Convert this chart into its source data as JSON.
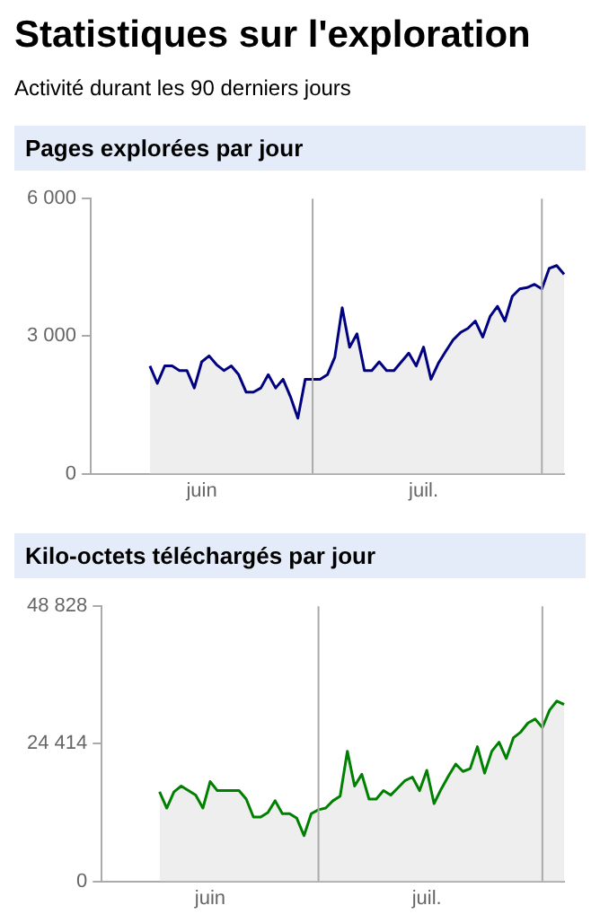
{
  "chart_data": [
    {
      "type": "other",
      "title": "Statistiques sur l'exploration",
      "subtitle": "Activité durant les 90 derniers jours"
    },
    {
      "type": "area",
      "title": "Pages explorées par jour",
      "grid": false,
      "categories": [
        null,
        null,
        null,
        null,
        null,
        null,
        null,
        null,
        null,
        null,
        null,
        null,
        null,
        null,
        null,
        "juin",
        null,
        null,
        null,
        null,
        null,
        null,
        null,
        null,
        null,
        null,
        null,
        null,
        null,
        null,
        null,
        null,
        null,
        null,
        null,
        null,
        null,
        null,
        null,
        null,
        null,
        null,
        null,
        null,
        null,
        "juil.",
        null,
        null,
        null,
        null,
        null,
        null,
        null,
        null,
        null,
        null,
        null,
        null,
        null,
        null,
        null,
        null,
        null,
        null,
        null
      ],
      "ylim": [
        0,
        6000
      ],
      "yticks": [
        0,
        {
          "value": 3000,
          "label": "3 000"
        },
        {
          "value": 6000,
          "label": "6 000"
        }
      ],
      "series": [
        {
          "color": "#000080",
          "values": [
            null,
            null,
            null,
            null,
            null,
            null,
            null,
            null,
            2350,
            1970,
            2350,
            2350,
            2250,
            2250,
            1870,
            2440,
            2570,
            2380,
            2250,
            2350,
            2160,
            1780,
            1780,
            1870,
            2160,
            1870,
            2060,
            1680,
            1210,
            2060,
            2060,
            2060,
            2160,
            2540,
            3620,
            2760,
            3050,
            2250,
            2250,
            2440,
            2250,
            2250,
            2440,
            2630,
            2350,
            2760,
            2060,
            2410,
            2670,
            2920,
            3080,
            3170,
            3330,
            2980,
            3430,
            3650,
            3330,
            3870,
            4030,
            4060,
            4130,
            4030,
            4480,
            4540,
            4350
          ]
        }
      ]
    },
    {
      "type": "area",
      "title": "Kilo-octets téléchargés par jour",
      "grid": false,
      "categories": [
        null,
        null,
        null,
        null,
        null,
        null,
        null,
        null,
        null,
        null,
        null,
        null,
        null,
        null,
        null,
        "juin",
        null,
        null,
        null,
        null,
        null,
        null,
        null,
        null,
        null,
        null,
        null,
        null,
        null,
        null,
        null,
        null,
        null,
        null,
        null,
        null,
        null,
        null,
        null,
        null,
        null,
        null,
        null,
        null,
        null,
        "juil.",
        null,
        null,
        null,
        null,
        null,
        null,
        null,
        null,
        null,
        null,
        null,
        null,
        null,
        null,
        null,
        null,
        null,
        null,
        null
      ],
      "ylim": [
        0,
        48828
      ],
      "yticks": [
        0,
        {
          "value": 24414,
          "label": "24 414"
        },
        {
          "value": 48828,
          "label": "48 828"
        }
      ],
      "series": [
        {
          "color": "#008000",
          "values": [
            null,
            null,
            null,
            null,
            null,
            null,
            null,
            null,
            15900,
            13000,
            15900,
            16900,
            16100,
            15300,
            13000,
            17700,
            16100,
            16100,
            16100,
            16100,
            14600,
            11400,
            11400,
            12200,
            14300,
            12000,
            12000,
            11200,
            8100,
            12000,
            12700,
            13000,
            14300,
            15100,
            23100,
            16900,
            19000,
            14600,
            14600,
            16100,
            15300,
            16600,
            17900,
            18500,
            16100,
            19700,
            13800,
            16400,
            18700,
            20800,
            19500,
            20000,
            23900,
            19200,
            23100,
            24700,
            21800,
            25500,
            26500,
            28100,
            28800,
            27300,
            30400,
            32000,
            31400
          ]
        }
      ]
    }
  ]
}
